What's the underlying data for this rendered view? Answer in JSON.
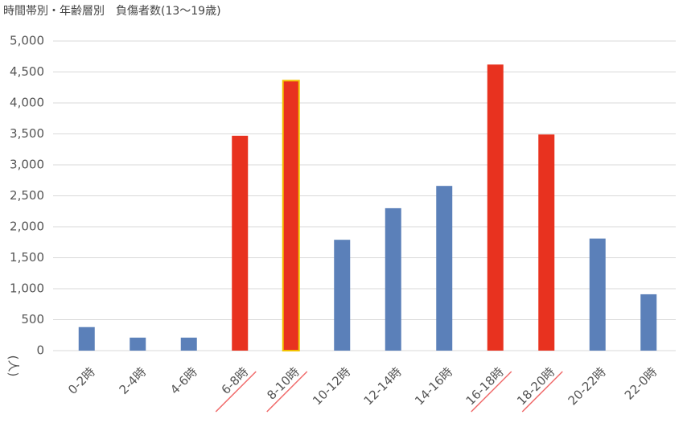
{
  "chart_data": {
    "type": "bar",
    "title": "時間帯別・年齢層別　負傷者数(13〜19歳)",
    "y_label": "(人)",
    "categories": [
      "0-2時",
      "2-4時",
      "4-6時",
      "6-8時",
      "8-10時",
      "10-12時",
      "12-14時",
      "14-16時",
      "16-18時",
      "18-20時",
      "20-22時",
      "22-0時"
    ],
    "values": [
      380,
      210,
      210,
      3470,
      4360,
      1790,
      2300,
      2660,
      4620,
      3490,
      1810,
      910
    ],
    "colors": [
      "#5b80b9",
      "#5b80b9",
      "#5b80b9",
      "#e8321f",
      "#e8321f",
      "#5b80b9",
      "#5b80b9",
      "#5b80b9",
      "#e8321f",
      "#e8321f",
      "#5b80b9",
      "#5b80b9"
    ],
    "edgecolors": [
      null,
      null,
      null,
      null,
      "#f2c200",
      null,
      null,
      null,
      null,
      null,
      null,
      null
    ],
    "ylim": [
      0,
      5000
    ],
    "yticks": [
      0,
      500,
      {
        "value": 1000,
        "label": "1,000"
      },
      {
        "value": 1500,
        "label": "1,500"
      },
      {
        "value": 2000,
        "label": "2,000"
      },
      {
        "value": 2500,
        "label": "2,500"
      },
      {
        "value": 3000,
        "label": "3,000"
      },
      {
        "value": 3500,
        "label": "3,500"
      },
      {
        "value": 4000,
        "label": "4,000"
      },
      {
        "value": 4500,
        "label": "4,500"
      },
      {
        "value": 5000,
        "label": "5,000"
      }
    ],
    "grid": true
  }
}
